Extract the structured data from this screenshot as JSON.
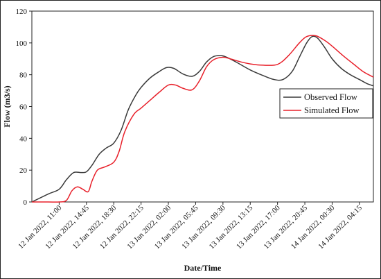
{
  "chart_data": {
    "type": "line",
    "xlabel": "Date/Time",
    "ylabel": "Flow (m3/s)",
    "ylim": [
      0,
      120
    ],
    "yticks": [
      0,
      20,
      40,
      60,
      80,
      100,
      120
    ],
    "xlim": [
      "2022-01-12 07:15",
      "2022-01-14 06:10"
    ],
    "xtick_labels": [
      {
        "label": "12 Jan 2022, 11:00",
        "t": "2022-01-12 11:00"
      },
      {
        "label": "12 Jan 2022, 14:45",
        "t": "2022-01-12 14:45"
      },
      {
        "label": "12 Jan 2022, 18:30",
        "t": "2022-01-12 18:30"
      },
      {
        "label": "12 Jan 2022, 22:15",
        "t": "2022-01-12 22:15"
      },
      {
        "label": "13 Jan 2022, 02:00",
        "t": "2022-01-13 02:00"
      },
      {
        "label": "13 Jan 2022, 05:45",
        "t": "2022-01-13 05:45"
      },
      {
        "label": "13 Jan 2022, 09:30",
        "t": "2022-01-13 09:30"
      },
      {
        "label": "13 Jan 2022, 13:15",
        "t": "2022-01-13 13:15"
      },
      {
        "label": "13 Jan 2022, 17:00",
        "t": "2022-01-13 17:00"
      },
      {
        "label": "13 Jan 2022, 20:45",
        "t": "2022-01-13 20:45"
      },
      {
        "label": "14 Jan 2022, 00:30",
        "t": "2022-01-14 00:30"
      },
      {
        "label": "14 Jan 2022, 04:15",
        "t": "2022-01-14 04:15"
      }
    ],
    "legend_position": "center-right",
    "grid": false,
    "series": [
      {
        "name": "Observed Flow",
        "color": "#3a3a3a",
        "points": [
          [
            "2022-01-12 07:15",
            0
          ],
          [
            "2022-01-12 09:30",
            5
          ],
          [
            "2022-01-12 11:00",
            8
          ],
          [
            "2022-01-12 12:00",
            14
          ],
          [
            "2022-01-12 13:00",
            18.5
          ],
          [
            "2022-01-12 14:00",
            18.5
          ],
          [
            "2022-01-12 14:45",
            19
          ],
          [
            "2022-01-12 15:30",
            23
          ],
          [
            "2022-01-12 16:30",
            30
          ],
          [
            "2022-01-12 17:30",
            34
          ],
          [
            "2022-01-12 18:30",
            37
          ],
          [
            "2022-01-12 19:30",
            45
          ],
          [
            "2022-01-12 20:30",
            58
          ],
          [
            "2022-01-12 21:30",
            67
          ],
          [
            "2022-01-12 22:15",
            72
          ],
          [
            "2022-01-12 23:30",
            78
          ],
          [
            "2022-01-13 00:45",
            82
          ],
          [
            "2022-01-13 01:45",
            84.5
          ],
          [
            "2022-01-13 02:45",
            84
          ],
          [
            "2022-01-13 04:00",
            80.5
          ],
          [
            "2022-01-13 05:15",
            79
          ],
          [
            "2022-01-13 06:15",
            82
          ],
          [
            "2022-01-13 07:15",
            88
          ],
          [
            "2022-01-13 08:15",
            91.5
          ],
          [
            "2022-01-13 09:15",
            92
          ],
          [
            "2022-01-13 10:00",
            91
          ],
          [
            "2022-01-13 11:30",
            87.5
          ],
          [
            "2022-01-13 13:15",
            83
          ],
          [
            "2022-01-13 15:00",
            79.5
          ],
          [
            "2022-01-13 16:30",
            77
          ],
          [
            "2022-01-13 17:45",
            77
          ],
          [
            "2022-01-13 19:00",
            82
          ],
          [
            "2022-01-13 20:00",
            91
          ],
          [
            "2022-01-13 21:00",
            100
          ],
          [
            "2022-01-13 21:45",
            104
          ],
          [
            "2022-01-13 22:30",
            103
          ],
          [
            "2022-01-13 23:30",
            97
          ],
          [
            "2022-01-14 00:30",
            90
          ],
          [
            "2022-01-14 01:45",
            84
          ],
          [
            "2022-01-14 03:00",
            80
          ],
          [
            "2022-01-14 04:15",
            77
          ],
          [
            "2022-01-14 05:15",
            74.5
          ],
          [
            "2022-01-14 06:10",
            73
          ]
        ]
      },
      {
        "name": "Simulated Flow",
        "color": "#e8202a",
        "points": [
          [
            "2022-01-12 07:15",
            0
          ],
          [
            "2022-01-12 09:30",
            0
          ],
          [
            "2022-01-12 11:00",
            0
          ],
          [
            "2022-01-12 12:00",
            1
          ],
          [
            "2022-01-12 12:45",
            7
          ],
          [
            "2022-01-12 13:30",
            9.5
          ],
          [
            "2022-01-12 14:15",
            8
          ],
          [
            "2022-01-12 15:00",
            6.5
          ],
          [
            "2022-01-12 15:30",
            13
          ],
          [
            "2022-01-12 16:15",
            20
          ],
          [
            "2022-01-12 17:15",
            22
          ],
          [
            "2022-01-12 18:30",
            25
          ],
          [
            "2022-01-12 19:15",
            32
          ],
          [
            "2022-01-12 20:00",
            44
          ],
          [
            "2022-01-12 21:15",
            55
          ],
          [
            "2022-01-12 22:15",
            59
          ],
          [
            "2022-01-12 23:30",
            64
          ],
          [
            "2022-01-13 00:45",
            69
          ],
          [
            "2022-01-13 02:00",
            73.5
          ],
          [
            "2022-01-13 03:00",
            73.5
          ],
          [
            "2022-01-13 04:00",
            71.5
          ],
          [
            "2022-01-13 05:15",
            70.5
          ],
          [
            "2022-01-13 06:15",
            76
          ],
          [
            "2022-01-13 07:15",
            85
          ],
          [
            "2022-01-13 08:15",
            89.5
          ],
          [
            "2022-01-13 09:30",
            91
          ],
          [
            "2022-01-13 10:30",
            90
          ],
          [
            "2022-01-13 12:00",
            88
          ],
          [
            "2022-01-13 13:15",
            86.8
          ],
          [
            "2022-01-13 15:00",
            86
          ],
          [
            "2022-01-13 17:00",
            86.5
          ],
          [
            "2022-01-13 18:30",
            92
          ],
          [
            "2022-01-13 20:00",
            100
          ],
          [
            "2022-01-13 21:00",
            104
          ],
          [
            "2022-01-13 22:15",
            104.5
          ],
          [
            "2022-01-13 23:30",
            101.5
          ],
          [
            "2022-01-14 00:30",
            98
          ],
          [
            "2022-01-14 02:00",
            92
          ],
          [
            "2022-01-14 03:30",
            86.5
          ],
          [
            "2022-01-14 04:45",
            82
          ],
          [
            "2022-01-14 06:10",
            78.5
          ]
        ]
      }
    ]
  }
}
